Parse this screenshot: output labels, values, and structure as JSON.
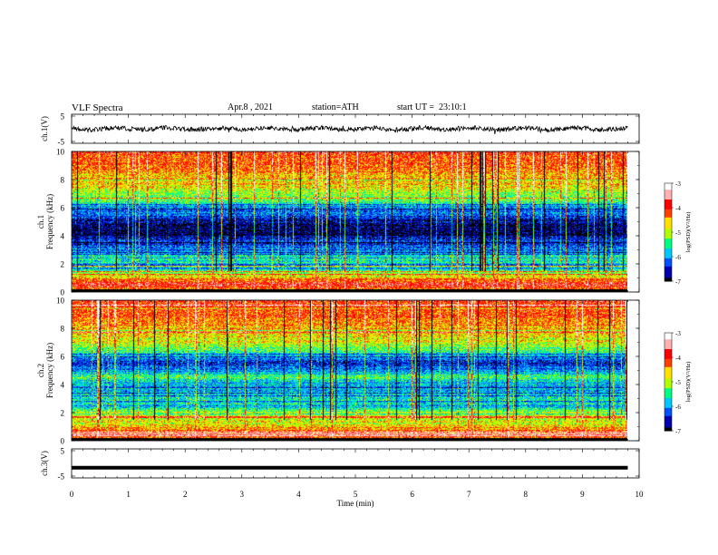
{
  "header": {
    "title": "VLF Spectra",
    "date": "Apr.8 , 2021",
    "station": "station=ATH",
    "start": "start UT =  23:10:1"
  },
  "colors": {
    "trace": "#000000",
    "colormap": [
      "#000000",
      "#0000b0",
      "#0050ff",
      "#00c8ff",
      "#00ff80",
      "#b0ff00",
      "#ffe000",
      "#ff4000",
      "#ff0000",
      "#ffb0b0",
      "#ffffff"
    ]
  },
  "chart_data": [
    {
      "type": "line",
      "ylabel": "ch.1(V)",
      "ylim": [
        -5,
        5
      ],
      "yticks": [
        "5",
        "-5"
      ],
      "xlim": [
        0,
        10
      ],
      "series": [
        {
          "level": 0,
          "noise": 0.8
        }
      ]
    },
    {
      "type": "heatmap",
      "ylabel_channel": "ch.1",
      "ylabel": "Frequency (kHz)",
      "ylim": [
        0,
        10
      ],
      "yticks": [
        "0",
        "2",
        "4",
        "6",
        "8",
        "10"
      ],
      "xlim": [
        0,
        10
      ],
      "data_end_min": 9.8,
      "colorbar": {
        "label": "log(PSD)(V²/Hz)",
        "range": [
          -7,
          -3
        ],
        "ticks": [
          "-3",
          "-4",
          "-5",
          "-6",
          "-7"
        ]
      },
      "spectral_profile": [
        {
          "f": 0.0,
          "v": -5.0
        },
        {
          "f": 0.5,
          "v": -3.8
        },
        {
          "f": 1.0,
          "v": -4.4
        },
        {
          "f": 1.4,
          "v": -5.2
        },
        {
          "f": 2.0,
          "v": -5.6
        },
        {
          "f": 2.5,
          "v": -5.4
        },
        {
          "f": 3.0,
          "v": -6.1
        },
        {
          "f": 3.5,
          "v": -6.3
        },
        {
          "f": 4.2,
          "v": -6.9
        },
        {
          "f": 5.0,
          "v": -6.7
        },
        {
          "f": 5.5,
          "v": -6.2
        },
        {
          "f": 6.0,
          "v": -6.0
        },
        {
          "f": 6.5,
          "v": -5.4
        },
        {
          "f": 7.0,
          "v": -5.0
        },
        {
          "f": 8.0,
          "v": -4.5
        },
        {
          "f": 9.0,
          "v": -4.2
        },
        {
          "f": 10.0,
          "v": -4.0
        }
      ]
    },
    {
      "type": "heatmap",
      "ylabel_channel": "ch.2",
      "ylabel": "Frequency (kHz)",
      "ylim": [
        0,
        10
      ],
      "yticks": [
        "0",
        "2",
        "4",
        "6",
        "8",
        "10"
      ],
      "xlim": [
        0,
        10
      ],
      "data_end_min": 9.8,
      "colorbar": {
        "label": "log(PSD)(V²/Hz)",
        "range": [
          -7,
          -3
        ],
        "ticks": [
          "-3",
          "-4",
          "-5",
          "-6",
          "-7"
        ]
      },
      "spectral_profile": [
        {
          "f": 0.0,
          "v": -4.8
        },
        {
          "f": 0.5,
          "v": -3.9
        },
        {
          "f": 1.0,
          "v": -4.5
        },
        {
          "f": 1.5,
          "v": -5.0
        },
        {
          "f": 2.0,
          "v": -4.9
        },
        {
          "f": 2.5,
          "v": -5.8
        },
        {
          "f": 3.0,
          "v": -5.5
        },
        {
          "f": 3.5,
          "v": -5.8
        },
        {
          "f": 4.0,
          "v": -5.9
        },
        {
          "f": 4.6,
          "v": -5.3
        },
        {
          "f": 5.0,
          "v": -6.0
        },
        {
          "f": 5.6,
          "v": -6.5
        },
        {
          "f": 6.0,
          "v": -5.8
        },
        {
          "f": 6.5,
          "v": -5.3
        },
        {
          "f": 7.0,
          "v": -4.9
        },
        {
          "f": 8.0,
          "v": -4.5
        },
        {
          "f": 9.0,
          "v": -4.2
        },
        {
          "f": 10.0,
          "v": -4.0
        }
      ]
    },
    {
      "type": "line",
      "ylabel": "ch.3(V)",
      "ylim": [
        -5,
        5
      ],
      "yticks": [
        "5",
        "-5"
      ],
      "xlim": [
        0,
        10
      ],
      "xlabel": "Time (min)",
      "xticks": [
        "0",
        "1",
        "2",
        "3",
        "4",
        "5",
        "6",
        "7",
        "8",
        "9",
        "10"
      ],
      "series": [
        {
          "level": -1.5,
          "noise": 0.0
        }
      ]
    }
  ]
}
